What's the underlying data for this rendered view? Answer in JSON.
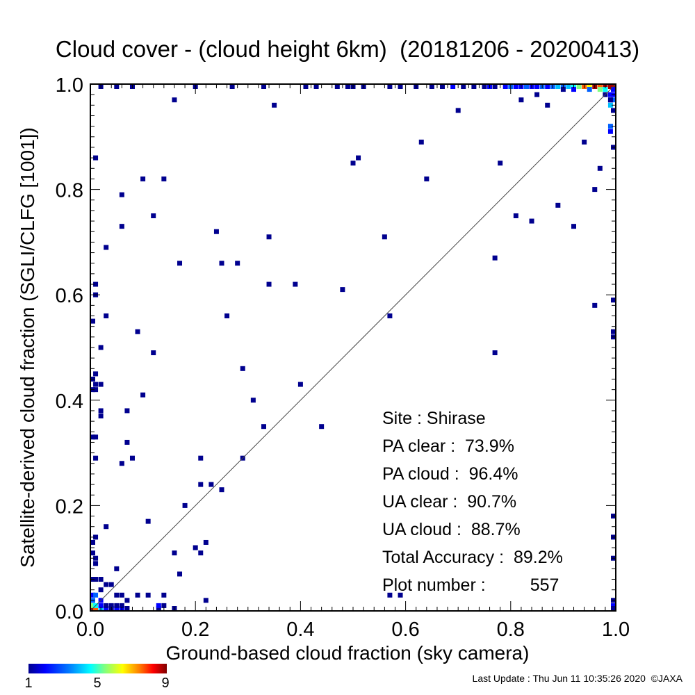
{
  "chart_data": {
    "type": "heatmap",
    "title": "Cloud cover - (cloud height 6km)  (20181206 - 20200413)",
    "xlabel": "Ground-based cloud fraction (sky camera)",
    "ylabel": "Satellite-derived cloud fraction (SGLI/CLFG [1001])",
    "xlim": [
      0.0,
      1.0
    ],
    "ylim": [
      0.0,
      1.0
    ],
    "x_tick_labels": [
      "0.0",
      "0.2",
      "0.4",
      "0.6",
      "0.8",
      "1.0"
    ],
    "y_tick_labels": [
      "0.0",
      "0.2",
      "0.4",
      "0.6",
      "0.8",
      "1.0"
    ],
    "reference_line": "y = x",
    "colorbar": {
      "min": 1,
      "max": 9,
      "tick_labels": [
        "1",
        "5",
        "9"
      ]
    },
    "cells": [
      [
        0.0,
        0.0,
        9
      ],
      [
        0.01,
        0.0,
        8
      ],
      [
        0.0,
        0.01,
        6
      ],
      [
        0.01,
        0.01,
        5
      ],
      [
        0.0,
        0.02,
        3
      ],
      [
        0.02,
        0.0,
        4
      ],
      [
        0.03,
        0.0,
        2
      ],
      [
        0.05,
        0.0,
        2
      ],
      [
        0.06,
        0.0,
        2
      ],
      [
        0.04,
        0.0,
        1
      ],
      [
        0.07,
        0.0,
        1
      ],
      [
        0.13,
        0.0,
        1
      ],
      [
        0.16,
        0.0,
        1
      ],
      [
        0.0,
        0.03,
        2
      ],
      [
        0.01,
        0.03,
        3
      ],
      [
        0.02,
        0.02,
        2
      ],
      [
        0.02,
        0.01,
        2
      ],
      [
        0.03,
        0.01,
        1
      ],
      [
        0.04,
        0.01,
        1
      ],
      [
        0.05,
        0.01,
        1
      ],
      [
        0.06,
        0.01,
        1
      ],
      [
        0.07,
        0.02,
        1
      ],
      [
        0.05,
        0.03,
        1
      ],
      [
        0.06,
        0.03,
        1
      ],
      [
        0.09,
        0.03,
        1
      ],
      [
        0.11,
        0.03,
        1
      ],
      [
        0.14,
        0.03,
        1
      ],
      [
        0.02,
        0.04,
        1
      ],
      [
        0.03,
        0.05,
        1
      ],
      [
        0.04,
        0.05,
        1
      ],
      [
        0.0,
        0.06,
        1
      ],
      [
        0.05,
        0.08,
        1
      ],
      [
        0.01,
        0.06,
        1
      ],
      [
        0.02,
        0.06,
        1
      ],
      [
        0.13,
        0.01,
        2
      ],
      [
        0.14,
        0.01,
        1
      ],
      [
        0.16,
        0.11,
        1
      ],
      [
        0.17,
        0.07,
        1
      ],
      [
        0.2,
        0.12,
        1
      ],
      [
        0.21,
        0.11,
        1
      ],
      [
        0.22,
        0.13,
        1
      ],
      [
        0.22,
        0.02,
        1
      ],
      [
        0.18,
        0.2,
        1
      ],
      [
        0.21,
        0.24,
        1
      ],
      [
        0.23,
        0.24,
        1
      ],
      [
        0.25,
        0.23,
        1
      ],
      [
        0.11,
        0.17,
        1
      ],
      [
        0.03,
        0.16,
        1
      ],
      [
        0.0,
        0.13,
        1
      ],
      [
        0.01,
        0.14,
        1
      ],
      [
        0.01,
        0.1,
        1
      ],
      [
        0.01,
        0.09,
        1
      ],
      [
        0.0,
        0.11,
        1
      ],
      [
        0.07,
        0.32,
        1
      ],
      [
        0.08,
        0.29,
        1
      ],
      [
        0.06,
        0.28,
        1
      ],
      [
        0.01,
        0.29,
        1
      ],
      [
        0.0,
        0.33,
        1
      ],
      [
        0.01,
        0.33,
        1
      ],
      [
        0.02,
        0.37,
        1
      ],
      [
        0.02,
        0.38,
        1
      ],
      [
        0.07,
        0.38,
        1
      ],
      [
        0.1,
        0.41,
        1
      ],
      [
        0.21,
        0.29,
        1
      ],
      [
        0.29,
        0.29,
        1
      ],
      [
        0.33,
        0.35,
        1
      ],
      [
        0.31,
        0.4,
        1
      ],
      [
        0.29,
        0.46,
        1
      ],
      [
        0.4,
        0.43,
        1
      ],
      [
        0.44,
        0.35,
        1
      ],
      [
        0.0,
        0.44,
        1
      ],
      [
        0.01,
        0.43,
        1
      ],
      [
        0.01,
        0.42,
        1
      ],
      [
        0.02,
        0.43,
        1
      ],
      [
        0.0,
        0.42,
        1
      ],
      [
        0.01,
        0.45,
        1
      ],
      [
        0.02,
        0.5,
        1
      ],
      [
        0.0,
        0.55,
        1
      ],
      [
        0.03,
        0.56,
        1
      ],
      [
        0.01,
        0.62,
        1
      ],
      [
        0.01,
        0.6,
        1
      ],
      [
        0.09,
        0.53,
        1
      ],
      [
        0.12,
        0.49,
        1
      ],
      [
        0.03,
        0.69,
        1
      ],
      [
        0.06,
        0.73,
        1
      ],
      [
        0.06,
        0.79,
        1
      ],
      [
        0.01,
        0.86,
        1
      ],
      [
        0.1,
        0.82,
        1
      ],
      [
        0.12,
        0.75,
        1
      ],
      [
        0.14,
        0.82,
        1
      ],
      [
        0.17,
        0.66,
        1
      ],
      [
        0.24,
        0.72,
        1
      ],
      [
        0.25,
        0.66,
        1
      ],
      [
        0.28,
        0.66,
        1
      ],
      [
        0.26,
        0.56,
        1
      ],
      [
        0.34,
        0.71,
        1
      ],
      [
        0.34,
        0.62,
        1
      ],
      [
        0.39,
        0.62,
        1
      ],
      [
        0.48,
        0.61,
        1
      ],
      [
        0.5,
        0.85,
        1
      ],
      [
        0.51,
        0.86,
        1
      ],
      [
        0.35,
        0.96,
        1
      ],
      [
        0.16,
        0.97,
        1
      ],
      [
        0.56,
        0.71,
        1
      ],
      [
        0.57,
        0.56,
        1
      ],
      [
        0.63,
        0.89,
        1
      ],
      [
        0.64,
        0.82,
        1
      ],
      [
        0.7,
        0.95,
        1
      ],
      [
        0.77,
        0.67,
        1
      ],
      [
        0.78,
        0.85,
        1
      ],
      [
        0.77,
        0.49,
        1
      ],
      [
        0.81,
        0.75,
        1
      ],
      [
        0.84,
        0.74,
        1
      ],
      [
        0.89,
        0.77,
        1
      ],
      [
        0.92,
        0.73,
        1
      ],
      [
        0.94,
        0.89,
        1
      ],
      [
        0.96,
        0.8,
        1
      ],
      [
        0.97,
        0.84,
        1
      ],
      [
        0.96,
        0.58,
        1
      ],
      [
        0.57,
        0.03,
        1
      ],
      [
        0.59,
        0.03,
        1
      ],
      [
        0.99,
        0.92,
        3
      ],
      [
        0.99,
        0.91,
        2
      ],
      [
        1.0,
        0.88,
        1
      ],
      [
        1.0,
        0.95,
        1
      ],
      [
        1.0,
        0.97,
        3
      ],
      [
        0.99,
        0.96,
        4
      ],
      [
        0.99,
        0.97,
        2
      ],
      [
        0.98,
        0.98,
        1
      ],
      [
        0.99,
        0.98,
        2
      ],
      [
        1.0,
        0.98,
        2
      ],
      [
        0.99,
        0.97,
        1
      ],
      [
        1.0,
        0.59,
        1
      ],
      [
        1.0,
        0.53,
        1
      ],
      [
        1.0,
        0.52,
        1
      ],
      [
        1.0,
        0.18,
        1
      ],
      [
        1.0,
        0.14,
        1
      ],
      [
        1.0,
        0.1,
        1
      ],
      [
        1.0,
        0.02,
        1
      ],
      [
        1.0,
        0.01,
        2
      ],
      [
        1.0,
        0.0,
        1
      ],
      [
        0.82,
        0.97,
        1
      ],
      [
        0.85,
        0.98,
        1
      ],
      [
        0.87,
        0.96,
        1
      ],
      [
        0.02,
        1.0,
        1
      ],
      [
        0.05,
        1.0,
        1
      ],
      [
        0.08,
        1.0,
        1
      ],
      [
        0.2,
        1.0,
        1
      ],
      [
        0.27,
        1.0,
        1
      ],
      [
        0.33,
        1.0,
        1
      ],
      [
        0.41,
        1.0,
        1
      ],
      [
        0.43,
        1.0,
        1
      ],
      [
        0.47,
        1.0,
        1
      ],
      [
        0.49,
        1.0,
        1
      ],
      [
        0.5,
        1.0,
        1
      ],
      [
        0.52,
        1.0,
        1
      ],
      [
        0.57,
        1.0,
        1
      ],
      [
        0.59,
        1.0,
        1
      ],
      [
        0.62,
        1.0,
        1
      ],
      [
        0.65,
        1.0,
        1
      ],
      [
        0.67,
        1.0,
        1
      ],
      [
        0.69,
        1.0,
        2
      ],
      [
        0.71,
        1.0,
        1
      ],
      [
        0.73,
        1.0,
        1
      ],
      [
        0.75,
        1.0,
        1
      ],
      [
        0.76,
        1.0,
        2
      ],
      [
        0.77,
        1.0,
        1
      ],
      [
        0.79,
        1.0,
        2
      ],
      [
        0.8,
        1.0,
        3
      ],
      [
        0.81,
        1.0,
        2
      ],
      [
        0.82,
        1.0,
        2
      ],
      [
        0.83,
        1.0,
        3
      ],
      [
        0.84,
        1.0,
        2
      ],
      [
        0.85,
        1.0,
        2
      ],
      [
        0.86,
        1.0,
        3
      ],
      [
        0.87,
        1.0,
        2
      ],
      [
        0.88,
        1.0,
        3
      ],
      [
        0.89,
        1.0,
        4
      ],
      [
        0.9,
        1.0,
        3
      ],
      [
        0.91,
        1.0,
        4
      ],
      [
        0.92,
        1.0,
        5
      ],
      [
        0.93,
        1.0,
        6
      ],
      [
        0.94,
        1.0,
        8
      ],
      [
        0.95,
        1.0,
        7
      ],
      [
        0.96,
        1.0,
        9
      ],
      [
        0.97,
        1.0,
        8
      ],
      [
        0.98,
        1.0,
        9
      ],
      [
        0.99,
        1.0,
        9
      ],
      [
        1.0,
        1.0,
        9
      ],
      [
        0.9,
        0.99,
        1
      ],
      [
        0.92,
        0.99,
        2
      ],
      [
        0.95,
        0.99,
        3
      ],
      [
        0.97,
        0.99,
        6
      ],
      [
        0.98,
        0.99,
        5
      ],
      [
        1.0,
        0.99,
        2
      ]
    ]
  },
  "stats": {
    "site": "Site : Shirase",
    "pa_clear": "PA clear :  73.9%",
    "pa_cloud": "PA cloud :  96.4%",
    "ua_clear": "UA clear :  90.7%",
    "ua_cloud": "UA cloud :  88.7%",
    "total_accuracy": "Total Accuracy :  89.2%",
    "plot_number_label": "Plot number :",
    "plot_number_value": "557"
  },
  "footer": "Last Update : Thu Jun 11 10:35:26 2020  ©JAXA"
}
